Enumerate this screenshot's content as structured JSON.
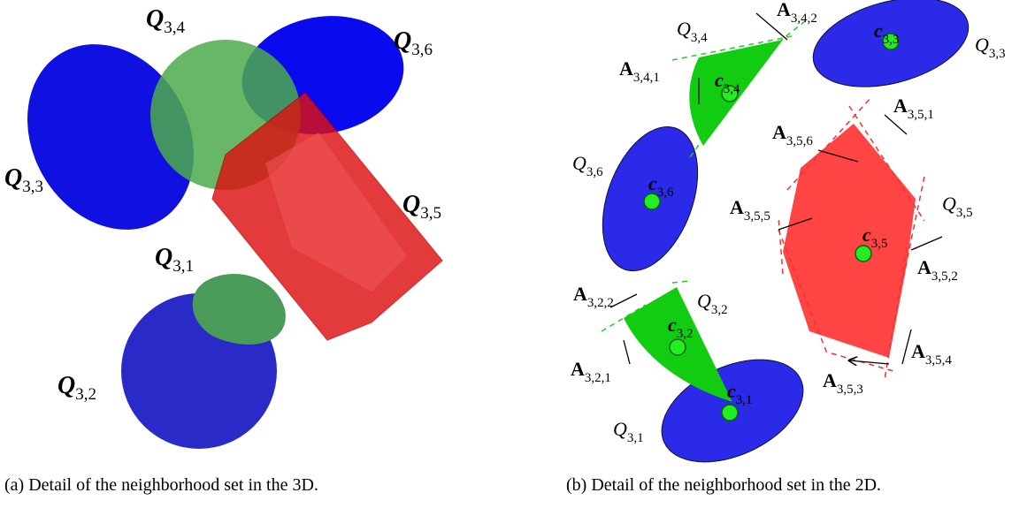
{
  "panels": [
    {
      "caption": "(a) Detail of the neighborhood set in the 3D.",
      "labels": [
        {
          "text": "Q",
          "sub": "3,4"
        },
        {
          "text": "Q",
          "sub": "3,6"
        },
        {
          "text": "Q",
          "sub": "3,3"
        },
        {
          "text": "Q",
          "sub": "3,5"
        },
        {
          "text": "Q",
          "sub": "3,1"
        },
        {
          "text": "Q",
          "sub": "3,2"
        }
      ]
    },
    {
      "caption": "(b) Detail of the neighborhood set in the 2D.",
      "labels": [
        {
          "text": "Q",
          "sub": "3,4"
        },
        {
          "text": "A",
          "sub": "3,4,2"
        },
        {
          "text": "c",
          "sub": "3,3"
        },
        {
          "text": "Q",
          "sub": "3,3"
        },
        {
          "text": "A",
          "sub": "3,4,1"
        },
        {
          "text": "c",
          "sub": "3,4"
        },
        {
          "text": "A",
          "sub": "3,5,1"
        },
        {
          "text": "A",
          "sub": "3,5,6"
        },
        {
          "text": "Q",
          "sub": "3,6"
        },
        {
          "text": "c",
          "sub": "3,6"
        },
        {
          "text": "A",
          "sub": "3,5,5"
        },
        {
          "text": "Q",
          "sub": "3,5"
        },
        {
          "text": "c",
          "sub": "3,5"
        },
        {
          "text": "A",
          "sub": "3,5,2"
        },
        {
          "text": "A",
          "sub": "3,2,2"
        },
        {
          "text": "Q",
          "sub": "3,2"
        },
        {
          "text": "c",
          "sub": "3,2"
        },
        {
          "text": "A",
          "sub": "3,2,1"
        },
        {
          "text": "A",
          "sub": "3,5,4"
        },
        {
          "text": "A",
          "sub": "3,5,3"
        },
        {
          "text": "c",
          "sub": "3,1"
        },
        {
          "text": "Q",
          "sub": "3,1"
        }
      ]
    }
  ]
}
